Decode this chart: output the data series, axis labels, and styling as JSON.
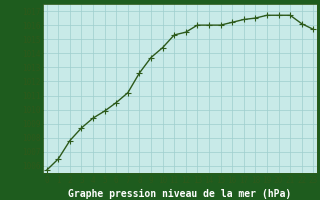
{
  "x": [
    0,
    1,
    2,
    3,
    4,
    5,
    6,
    7,
    8,
    9,
    10,
    11,
    12,
    13,
    14,
    15,
    16,
    17,
    18,
    19,
    20,
    21,
    22,
    23
  ],
  "y": [
    1005.7,
    1006.5,
    1007.8,
    1008.7,
    1009.4,
    1009.9,
    1010.5,
    1011.2,
    1012.6,
    1013.7,
    1014.4,
    1015.3,
    1015.5,
    1016.0,
    1016.0,
    1016.0,
    1016.2,
    1016.4,
    1016.5,
    1016.7,
    1016.7,
    1016.7,
    1016.1,
    1015.7
  ],
  "ylim": [
    1005.5,
    1017.5
  ],
  "xlim": [
    -0.3,
    23.3
  ],
  "yticks": [
    1006,
    1007,
    1008,
    1009,
    1010,
    1011,
    1012,
    1013,
    1014,
    1015,
    1016,
    1017
  ],
  "xticks": [
    0,
    1,
    2,
    3,
    4,
    5,
    6,
    7,
    8,
    9,
    10,
    11,
    12,
    13,
    14,
    15,
    16,
    17,
    18,
    19,
    20,
    21,
    22,
    23
  ],
  "xlabel": "Graphe pression niveau de la mer (hPa)",
  "line_color": "#2d5a1b",
  "marker": "+",
  "marker_size": 4,
  "line_width": 1.0,
  "bg_color": "#c8eae8",
  "grid_color": "#9ecece",
  "tick_fontsize": 5.5,
  "xlabel_fontsize": 7,
  "xlabel_color": "#ffffff",
  "xlabel_bold": true,
  "fig_bg_color": "#1e5c1e",
  "xlabel_bg": "#2d5a1b"
}
